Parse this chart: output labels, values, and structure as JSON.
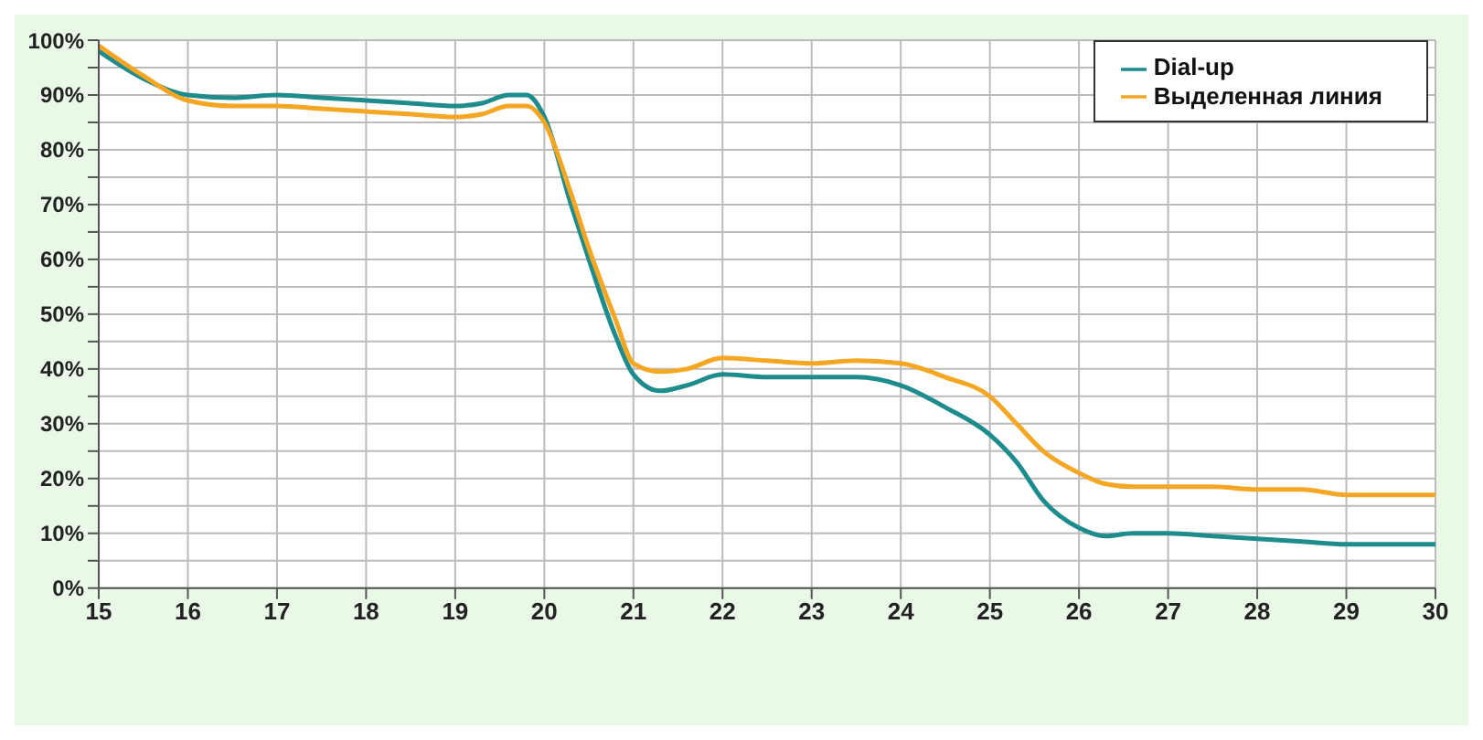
{
  "chart_data": {
    "type": "line",
    "x": [
      15,
      15.5,
      16,
      16.5,
      17,
      17.5,
      18,
      18.5,
      19,
      19.3,
      19.6,
      19.8,
      20,
      20.3,
      20.5,
      20.8,
      21,
      21.3,
      21.6,
      22,
      22.5,
      23,
      23.5,
      24,
      24.5,
      25,
      25.3,
      25.6,
      26,
      26.3,
      26.6,
      27,
      27.5,
      28,
      28.5,
      29,
      29.5,
      30
    ],
    "series": [
      {
        "name": "Dial-up",
        "color": "#1e8c8c",
        "values": [
          98,
          93,
          90,
          89.5,
          90,
          89.5,
          89,
          88.5,
          88,
          88.5,
          90,
          90,
          86,
          70,
          60,
          46,
          39,
          36,
          37,
          39,
          38.5,
          38.5,
          38.5,
          37,
          33,
          28,
          23,
          16,
          11,
          9.5,
          10,
          10,
          9.5,
          9,
          8.5,
          8,
          8,
          8
        ]
      },
      {
        "name": "Выделенная линия",
        "color": "#f5a623",
        "values": [
          99,
          93.5,
          89,
          88,
          88,
          87.5,
          87,
          86.5,
          86,
          86.5,
          88,
          88,
          85,
          72,
          62,
          49,
          41,
          39.5,
          40,
          42,
          41.5,
          41,
          41.5,
          41,
          38.5,
          35,
          30,
          25,
          21,
          19,
          18.5,
          18.5,
          18.5,
          18,
          18,
          17,
          17,
          17
        ]
      }
    ],
    "xlim": [
      15,
      30
    ],
    "xticks": [
      15,
      16,
      17,
      18,
      19,
      20,
      21,
      22,
      23,
      24,
      25,
      26,
      27,
      28,
      29,
      30
    ],
    "ylim": [
      0,
      100
    ],
    "yticks": [
      {
        "value": 0,
        "label": "0%"
      },
      {
        "value": 5,
        "label": null
      },
      {
        "value": 10,
        "label": "10%"
      },
      {
        "value": 15,
        "label": null
      },
      {
        "value": 20,
        "label": "20%"
      },
      {
        "value": 25,
        "label": null
      },
      {
        "value": 30,
        "label": "30%"
      },
      {
        "value": 35,
        "label": null
      },
      {
        "value": 40,
        "label": "40%"
      },
      {
        "value": 45,
        "label": null
      },
      {
        "value": 50,
        "label": "50%"
      },
      {
        "value": 55,
        "label": null
      },
      {
        "value": 60,
        "label": "60%"
      },
      {
        "value": 65,
        "label": null
      },
      {
        "value": 70,
        "label": "70%"
      },
      {
        "value": 75,
        "label": null
      },
      {
        "value": 80,
        "label": "80%"
      },
      {
        "value": 85,
        "label": null
      },
      {
        "value": 90,
        "label": "90%"
      },
      {
        "value": 95,
        "label": null
      },
      {
        "value": 100,
        "label": "100%"
      }
    ],
    "grid": true,
    "legend": "top right",
    "marker": "none",
    "line_style": "solid"
  }
}
